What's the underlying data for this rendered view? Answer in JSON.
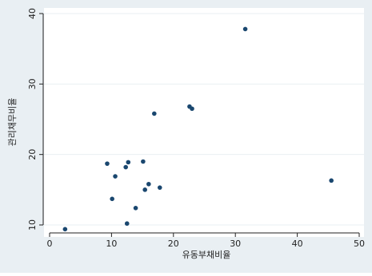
{
  "chart_data": {
    "type": "scatter",
    "title": "",
    "xlabel": "유동부채비율",
    "ylabel": "관리채무비율",
    "xlim": [
      0,
      50
    ],
    "ylim": [
      9,
      40
    ],
    "xticks": [
      0,
      10,
      20,
      30,
      40,
      50
    ],
    "yticks": [
      10,
      20,
      30,
      40
    ],
    "grid": "horizontal",
    "legend": "none",
    "series": [
      {
        "points": [
          {
            "x": 2.5,
            "y": 9.4
          },
          {
            "x": 9.3,
            "y": 18.7
          },
          {
            "x": 10.1,
            "y": 13.7
          },
          {
            "x": 10.6,
            "y": 16.9
          },
          {
            "x": 12.3,
            "y": 18.2
          },
          {
            "x": 12.7,
            "y": 18.9
          },
          {
            "x": 12.5,
            "y": 10.2
          },
          {
            "x": 13.9,
            "y": 12.4
          },
          {
            "x": 15.1,
            "y": 19.0
          },
          {
            "x": 15.4,
            "y": 15.0
          },
          {
            "x": 16.0,
            "y": 15.8
          },
          {
            "x": 16.9,
            "y": 25.8
          },
          {
            "x": 17.8,
            "y": 15.3
          },
          {
            "x": 22.6,
            "y": 26.8
          },
          {
            "x": 23.0,
            "y": 26.5
          },
          {
            "x": 31.6,
            "y": 37.8
          },
          {
            "x": 45.5,
            "y": 16.3
          }
        ]
      }
    ]
  },
  "colors": {
    "outer_background": "#e9eff3",
    "plot_background": "#ffffff",
    "gridline": "#e9eff3",
    "marker": "#1a476f",
    "axis": "#222222"
  }
}
